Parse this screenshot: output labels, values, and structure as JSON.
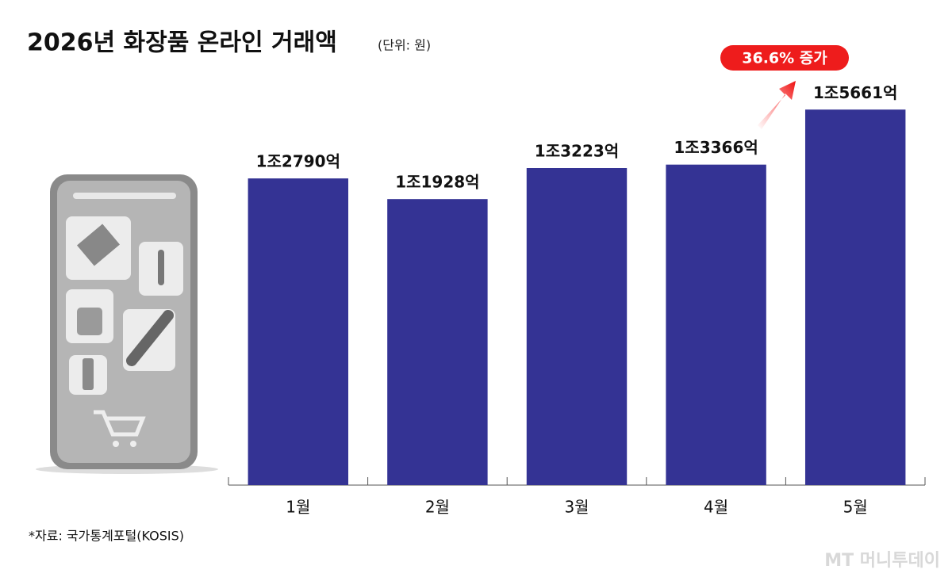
{
  "chart_data": {
    "type": "bar",
    "title": "2026년 화장품 온라인 거래액",
    "subtitle": "(단위: 원)",
    "categories": [
      "1월",
      "2월",
      "3월",
      "4월",
      "5월"
    ],
    "values": [
      12790,
      11928,
      13223,
      13366,
      15661
    ],
    "value_labels": [
      "1조2790억",
      "1조1928억",
      "1조3223억",
      "1조3366억",
      "1조5661억"
    ],
    "color": "#343394",
    "ylim": [
      0,
      16000
    ],
    "annotation": "36.6% 증가",
    "source": "*자료: 국가통계포털(KOSIS)",
    "watermark": "MT 머니투데이"
  }
}
